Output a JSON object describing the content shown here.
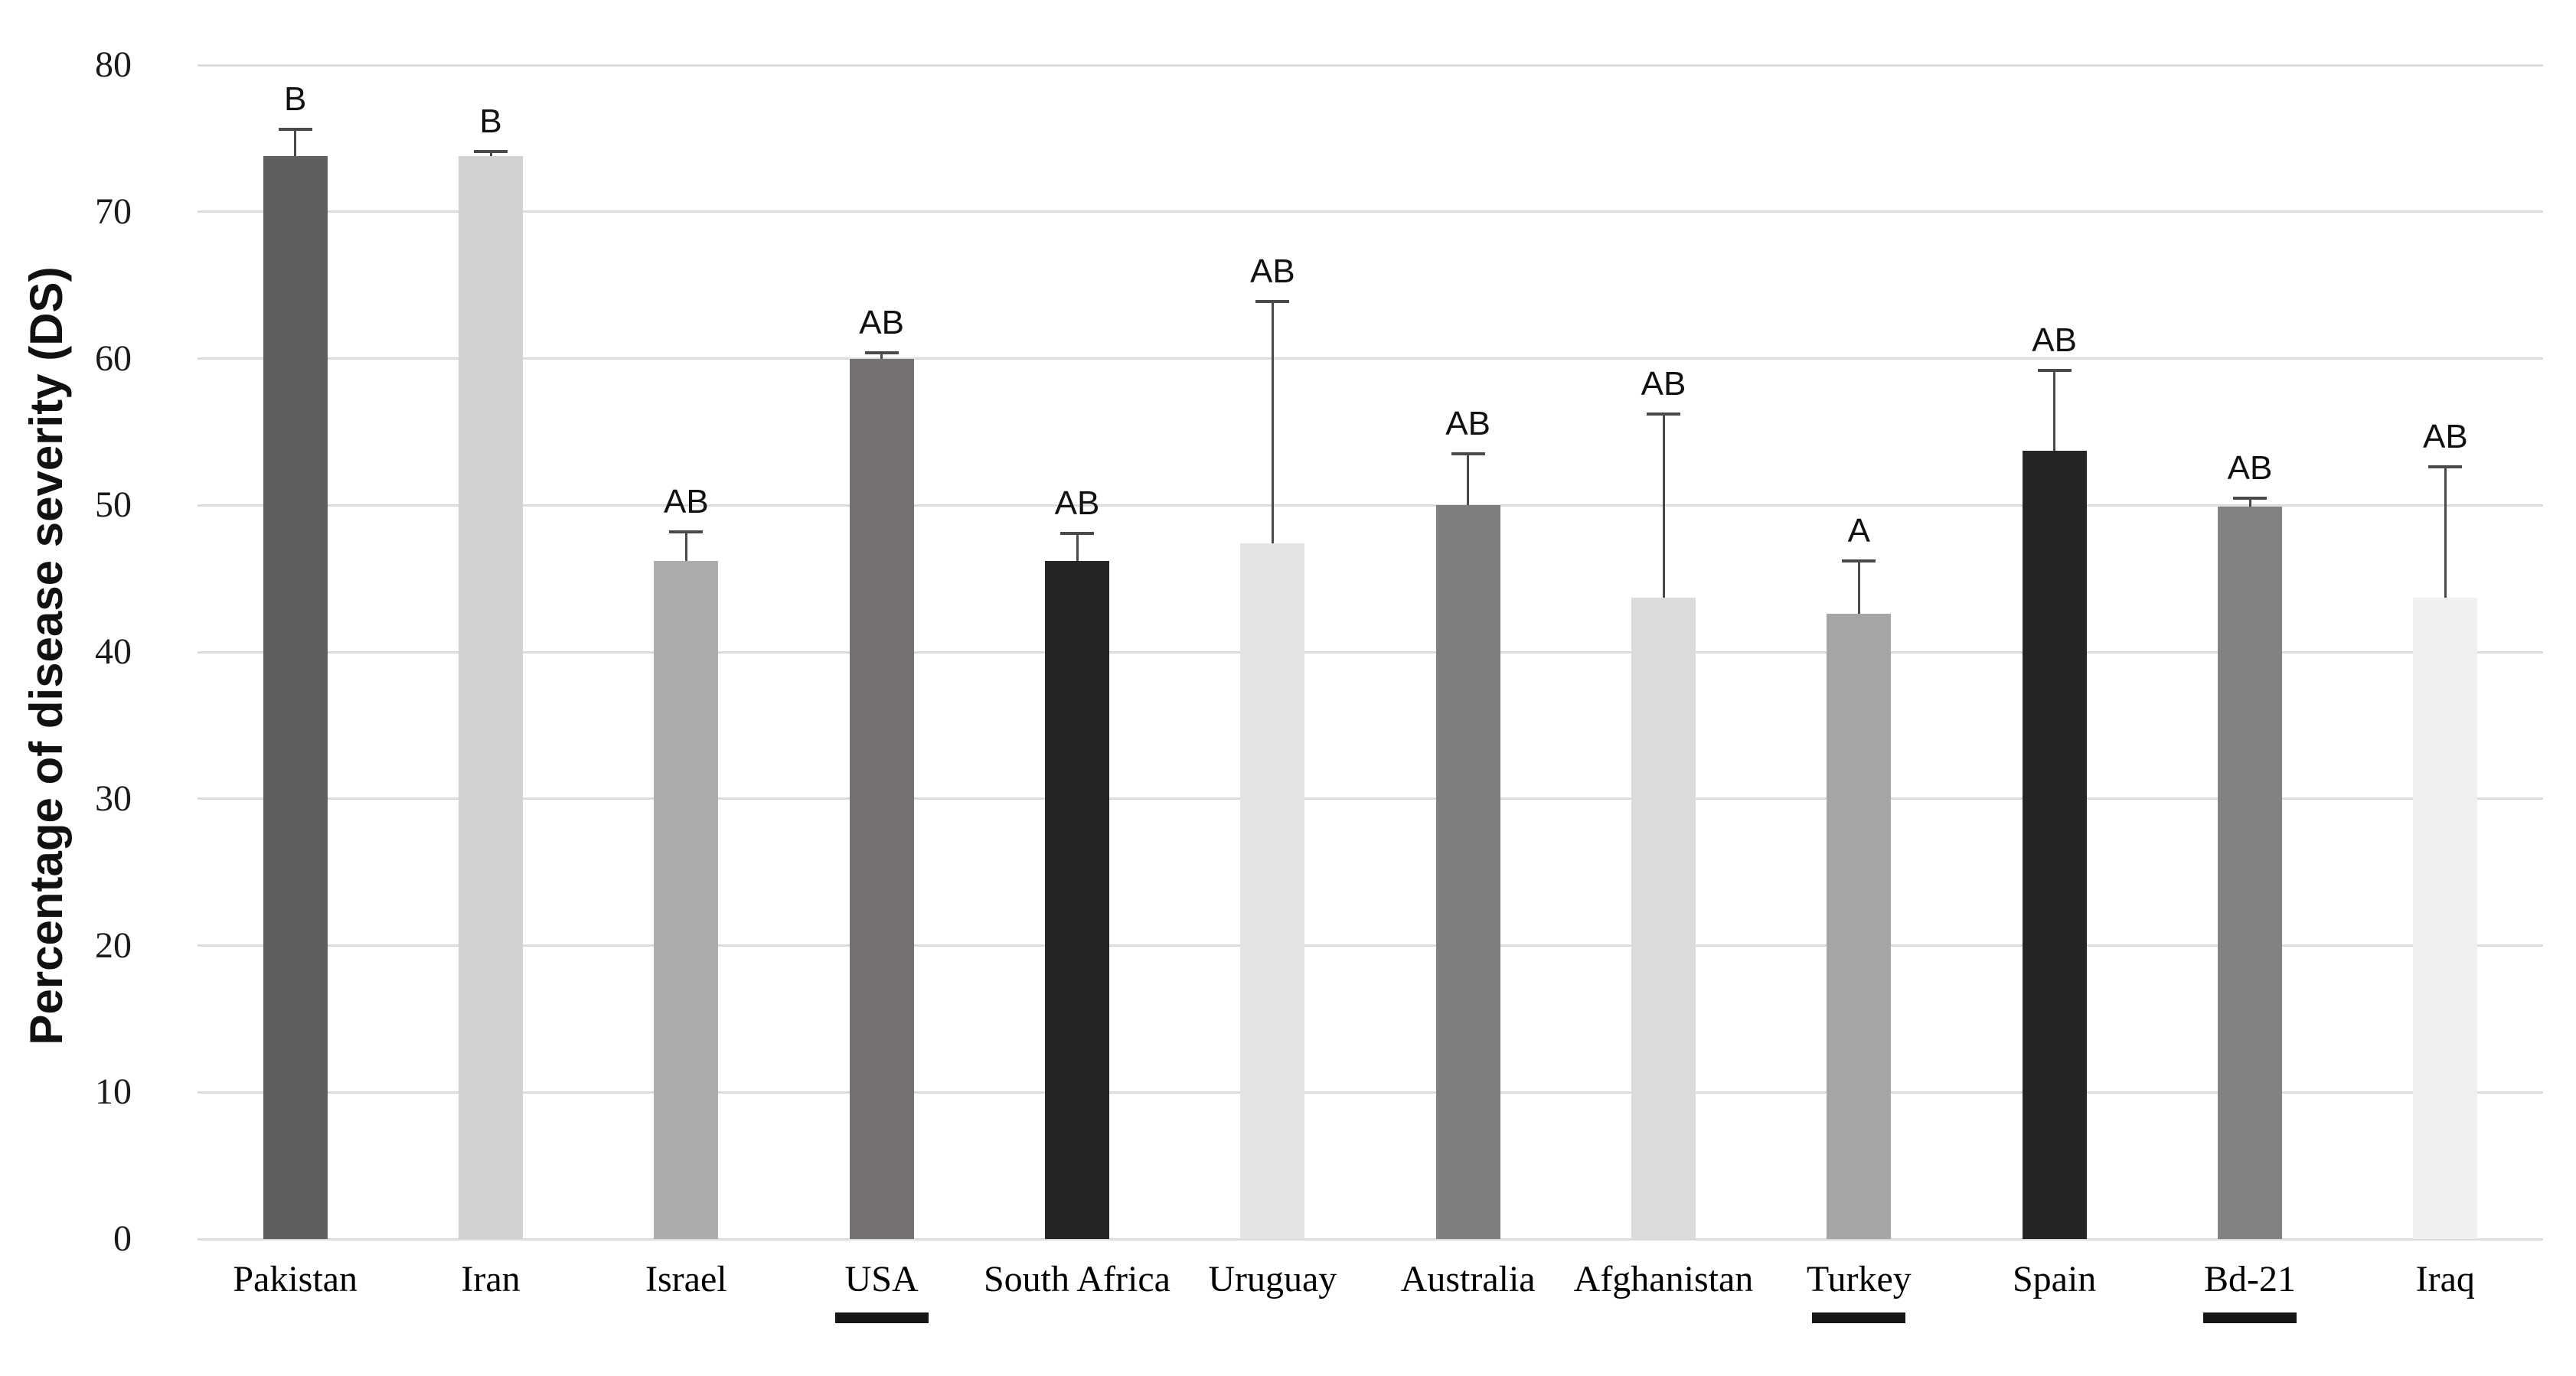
{
  "chart_data": {
    "type": "bar",
    "title": "",
    "xlabel": "",
    "ylabel": "Percentage of disease severity (DS)",
    "ylim": [
      0,
      80
    ],
    "yticks": [
      0,
      10,
      20,
      30,
      40,
      50,
      60,
      70,
      80
    ],
    "grid": "horizontal-gridlines",
    "legend": "none",
    "background_color": "#ffffff",
    "gridline_color": "#dcdcdc",
    "error_bar_color": "#4a4a4a",
    "categories": [
      "Pakistan",
      "Iran",
      "Israel",
      "USA",
      "South Africa",
      "Uruguay",
      "Australia",
      "Afghanistan",
      "Turkey",
      "Spain",
      "Bd-21",
      "Iraq"
    ],
    "bars": [
      {
        "category": "Pakistan",
        "value": 73.8,
        "error_top": 75.6,
        "sig": "B",
        "color": "#5f5f5f",
        "underlined": false
      },
      {
        "category": "Iran",
        "value": 73.8,
        "error_top": 74.1,
        "sig": "B",
        "color": "#d2d0d0",
        "underlined": false
      },
      {
        "category": "Israel",
        "value": 46.2,
        "error_top": 48.2,
        "sig": "AB",
        "color": "#aeabab",
        "underlined": false
      },
      {
        "category": "USA",
        "value": 60.0,
        "error_top": 60.4,
        "sig": "AB",
        "color": "#767172",
        "underlined": true
      },
      {
        "category": "South Africa",
        "value": 46.2,
        "error_top": 48.1,
        "sig": "AB",
        "color": "#272425",
        "underlined": false
      },
      {
        "category": "Uruguay",
        "value": 47.4,
        "error_top": 63.9,
        "sig": "AB",
        "color": "#e5e4e3",
        "underlined": false
      },
      {
        "category": "Australia",
        "value": 50.0,
        "error_top": 53.5,
        "sig": "AB",
        "color": "#7f7f7f",
        "underlined": false
      },
      {
        "category": "Afghanistan",
        "value": 43.7,
        "error_top": 56.2,
        "sig": "AB",
        "color": "#dcdbdb",
        "underlined": false
      },
      {
        "category": "Turkey",
        "value": 42.6,
        "error_top": 46.2,
        "sig": "A",
        "color": "#a6a4a4",
        "underlined": true
      },
      {
        "category": "Spain",
        "value": 53.7,
        "error_top": 59.2,
        "sig": "AB",
        "color": "#272425",
        "underlined": false
      },
      {
        "category": "Bd-21",
        "value": 49.9,
        "error_top": 50.5,
        "sig": "AB",
        "color": "#828282",
        "underlined": true
      },
      {
        "category": "Iraq",
        "value": 43.7,
        "error_top": 52.6,
        "sig": "AB",
        "color": "#f0efef",
        "underlined": false
      }
    ]
  }
}
